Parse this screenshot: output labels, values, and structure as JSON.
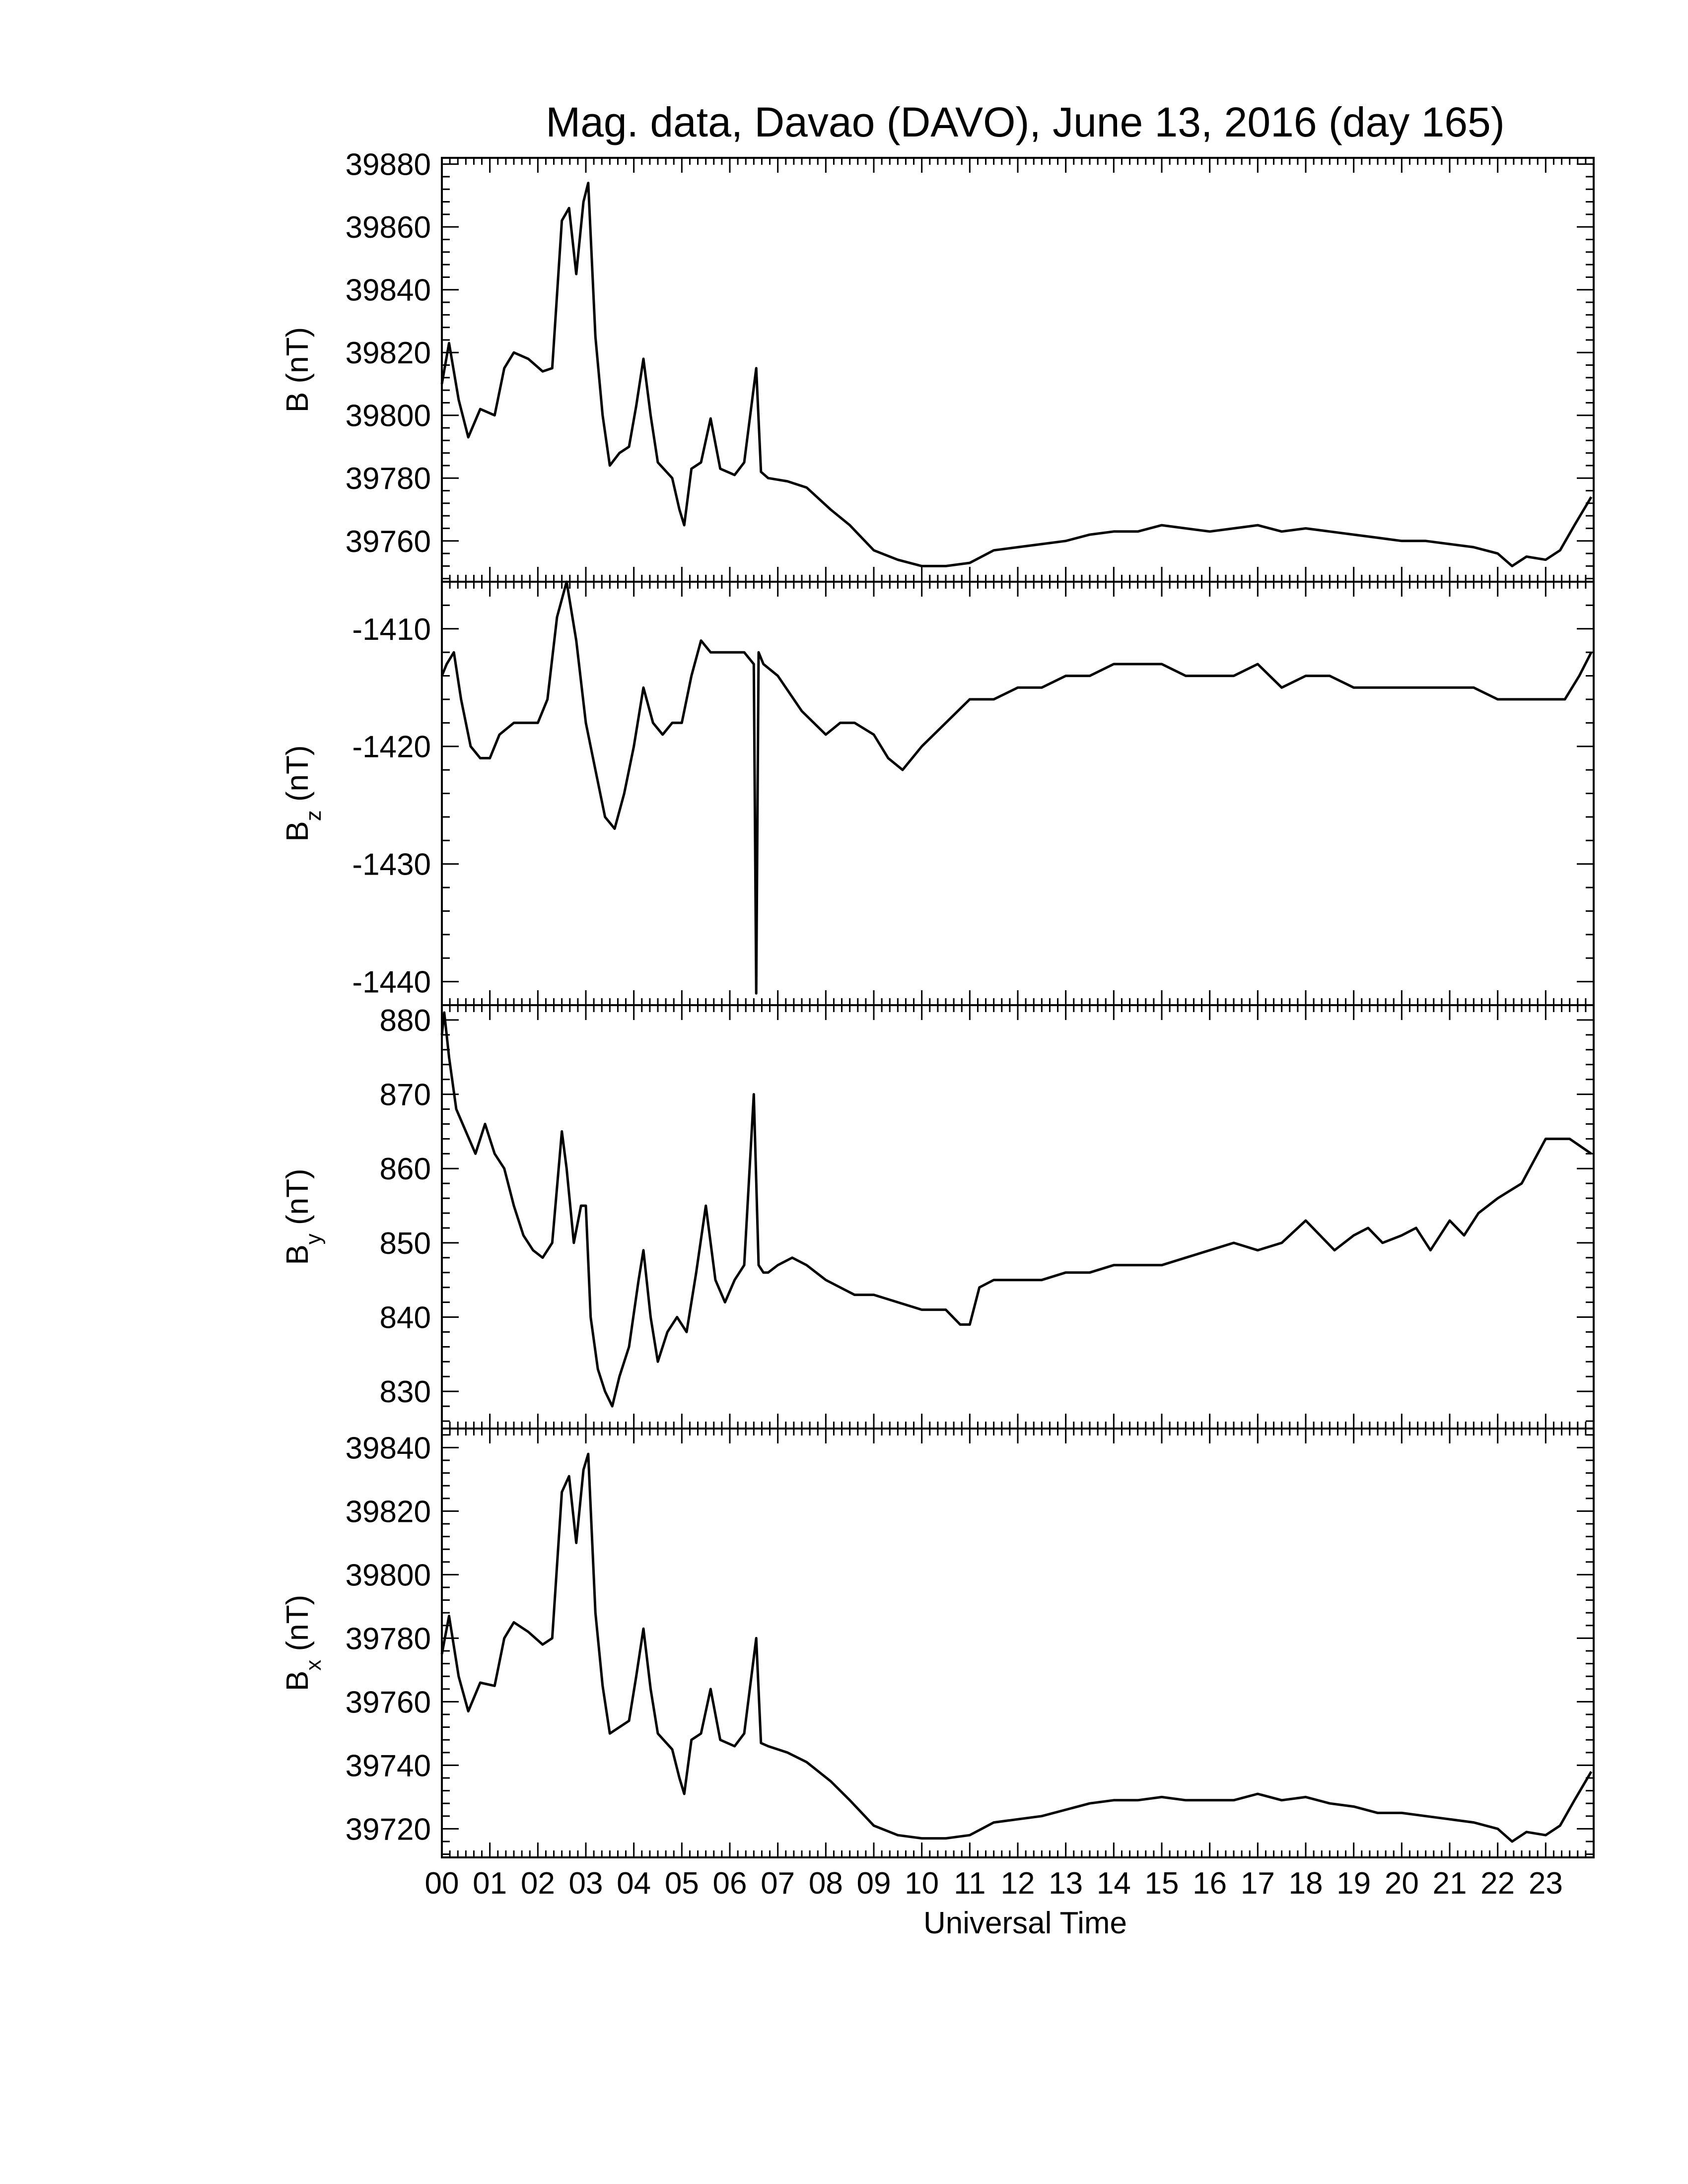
{
  "title": "Mag. data, Davao (DAVO), June 13, 2016 (day 165)",
  "colors": {
    "line": "#000000",
    "background": "#ffffff",
    "axis": "#000000"
  },
  "chart_data": [
    {
      "type": "line",
      "ylabel": {
        "base": "B",
        "sub": "",
        "unit": "(nT)"
      },
      "ylim": [
        39747,
        39882
      ],
      "yticks": [
        39760,
        39780,
        39800,
        39820,
        39840,
        39860,
        39880
      ],
      "ytick_labels": [
        "39760",
        "39780",
        "39800",
        "39820",
        "39840",
        "39860",
        "39880"
      ],
      "xlim": [
        0,
        24
      ],
      "x": [
        0.0,
        0.15,
        0.35,
        0.55,
        0.8,
        1.1,
        1.3,
        1.5,
        1.8,
        2.1,
        2.3,
        2.5,
        2.65,
        2.8,
        2.95,
        3.05,
        3.2,
        3.35,
        3.5,
        3.7,
        3.9,
        4.05,
        4.2,
        4.35,
        4.5,
        4.8,
        4.95,
        5.05,
        5.2,
        5.4,
        5.6,
        5.8,
        6.1,
        6.3,
        6.55,
        6.65,
        6.8,
        7.2,
        7.6,
        8.1,
        8.5,
        9.0,
        9.5,
        10.0,
        10.5,
        11.0,
        11.5,
        12.0,
        12.5,
        13.0,
        13.5,
        14.0,
        14.5,
        15.0,
        15.5,
        16.0,
        16.5,
        17.0,
        17.5,
        18.0,
        18.5,
        19.0,
        19.5,
        20.0,
        20.5,
        21.0,
        21.5,
        22.0,
        22.3,
        22.6,
        23.0,
        23.3,
        23.6,
        23.95
      ],
      "y": [
        39810,
        39823,
        39805,
        39793,
        39802,
        39800,
        39815,
        39820,
        39818,
        39814,
        39815,
        39862,
        39866,
        39845,
        39868,
        39874,
        39825,
        39800,
        39784,
        39788,
        39790,
        39803,
        39818,
        39800,
        39785,
        39780,
        39770,
        39765,
        39783,
        39785,
        39799,
        39783,
        39781,
        39785,
        39815,
        39782,
        39780,
        39779,
        39777,
        39770,
        39765,
        39757,
        39754,
        39752,
        39752,
        39753,
        39757,
        39758,
        39759,
        39760,
        39762,
        39763,
        39763,
        39765,
        39764,
        39763,
        39764,
        39765,
        39763,
        39764,
        39763,
        39762,
        39761,
        39760,
        39760,
        39759,
        39758,
        39756,
        39752,
        39755,
        39754,
        39757,
        39765,
        39774
      ]
    },
    {
      "type": "line",
      "ylabel": {
        "base": "B",
        "sub": "z",
        "unit": "(nT)"
      },
      "ylim": [
        -1442,
        -1406
      ],
      "yticks": [
        -1440,
        -1430,
        -1420,
        -1410
      ],
      "ytick_labels": [
        "-1440",
        "-1430",
        "-1420",
        "-1410"
      ],
      "xlim": [
        0,
        24
      ],
      "x": [
        0.0,
        0.1,
        0.25,
        0.4,
        0.6,
        0.8,
        1.0,
        1.2,
        1.5,
        1.8,
        2.0,
        2.2,
        2.4,
        2.6,
        2.8,
        3.0,
        3.2,
        3.4,
        3.6,
        3.8,
        4.0,
        4.2,
        4.4,
        4.6,
        4.8,
        5.0,
        5.2,
        5.4,
        5.6,
        5.8,
        6.0,
        6.3,
        6.5,
        6.55,
        6.6,
        6.7,
        7.0,
        7.5,
        8.0,
        8.3,
        8.6,
        9.0,
        9.3,
        9.6,
        10.0,
        10.5,
        11.0,
        11.5,
        12.0,
        12.5,
        13.0,
        13.5,
        14.0,
        14.5,
        15.0,
        15.5,
        16.0,
        16.5,
        17.0,
        17.5,
        18.0,
        18.5,
        19.0,
        19.5,
        20.0,
        20.5,
        21.0,
        21.5,
        22.0,
        22.5,
        23.0,
        23.4,
        23.7,
        23.95
      ],
      "y": [
        -1414,
        -1413,
        -1412,
        -1416,
        -1420,
        -1421,
        -1421,
        -1419,
        -1418,
        -1418,
        -1418,
        -1416,
        -1409,
        -1406,
        -1411,
        -1418,
        -1422,
        -1426,
        -1427,
        -1424,
        -1420,
        -1415,
        -1418,
        -1419,
        -1418,
        -1418,
        -1414,
        -1411,
        -1412,
        -1412,
        -1412,
        -1412,
        -1413,
        -1441,
        -1412,
        -1413,
        -1414,
        -1417,
        -1419,
        -1418,
        -1418,
        -1419,
        -1421,
        -1422,
        -1420,
        -1418,
        -1416,
        -1416,
        -1415,
        -1415,
        -1414,
        -1414,
        -1413,
        -1413,
        -1413,
        -1414,
        -1414,
        -1414,
        -1413,
        -1415,
        -1414,
        -1414,
        -1415,
        -1415,
        -1415,
        -1415,
        -1415,
        -1415,
        -1416,
        -1416,
        -1416,
        -1416,
        -1414,
        -1412
      ]
    },
    {
      "type": "line",
      "ylabel": {
        "base": "B",
        "sub": "y",
        "unit": "(nT)"
      },
      "ylim": [
        825,
        882
      ],
      "yticks": [
        830,
        840,
        850,
        860,
        870,
        880
      ],
      "ytick_labels": [
        "830",
        "840",
        "850",
        "860",
        "870",
        "880"
      ],
      "xlim": [
        0,
        24
      ],
      "x": [
        0.0,
        0.05,
        0.15,
        0.3,
        0.5,
        0.7,
        0.9,
        1.1,
        1.3,
        1.5,
        1.7,
        1.9,
        2.1,
        2.3,
        2.5,
        2.6,
        2.75,
        2.9,
        3.0,
        3.1,
        3.25,
        3.4,
        3.55,
        3.7,
        3.9,
        4.1,
        4.2,
        4.35,
        4.5,
        4.7,
        4.9,
        5.1,
        5.3,
        5.5,
        5.7,
        5.9,
        6.1,
        6.3,
        6.5,
        6.6,
        6.7,
        6.8,
        7.0,
        7.3,
        7.6,
        8.0,
        8.3,
        8.6,
        9.0,
        9.5,
        10.0,
        10.5,
        10.8,
        11.0,
        11.2,
        11.5,
        12.0,
        12.5,
        13.0,
        13.5,
        14.0,
        14.5,
        15.0,
        15.5,
        16.0,
        16.5,
        17.0,
        17.5,
        18.0,
        18.3,
        18.6,
        19.0,
        19.3,
        19.6,
        20.0,
        20.3,
        20.6,
        21.0,
        21.3,
        21.6,
        22.0,
        22.5,
        23.0,
        23.5,
        23.95
      ],
      "y": [
        878,
        881,
        875,
        868,
        865,
        862,
        866,
        862,
        860,
        855,
        851,
        849,
        848,
        850,
        865,
        860,
        850,
        855,
        855,
        840,
        833,
        830,
        828,
        832,
        836,
        845,
        849,
        840,
        834,
        838,
        840,
        838,
        846,
        855,
        845,
        842,
        845,
        847,
        870,
        847,
        846,
        846,
        847,
        848,
        847,
        845,
        844,
        843,
        843,
        842,
        841,
        841,
        839,
        839,
        844,
        845,
        845,
        845,
        846,
        846,
        847,
        847,
        847,
        848,
        849,
        850,
        849,
        850,
        853,
        851,
        849,
        851,
        852,
        850,
        851,
        852,
        849,
        853,
        851,
        854,
        856,
        858,
        864,
        864,
        862
      ]
    },
    {
      "type": "line",
      "ylabel": {
        "base": "B",
        "sub": "x",
        "unit": "(nT)"
      },
      "ylim": [
        39711,
        39846
      ],
      "yticks": [
        39720,
        39740,
        39760,
        39780,
        39800,
        39820,
        39840
      ],
      "ytick_labels": [
        "39720",
        "39740",
        "39760",
        "39780",
        "39800",
        "39820",
        "39840"
      ],
      "xlim": [
        0,
        24
      ],
      "x": [
        0.0,
        0.15,
        0.35,
        0.55,
        0.8,
        1.1,
        1.3,
        1.5,
        1.8,
        2.1,
        2.3,
        2.5,
        2.65,
        2.8,
        2.95,
        3.05,
        3.2,
        3.35,
        3.5,
        3.7,
        3.9,
        4.05,
        4.2,
        4.35,
        4.5,
        4.8,
        4.95,
        5.05,
        5.2,
        5.4,
        5.6,
        5.8,
        6.1,
        6.3,
        6.55,
        6.65,
        6.8,
        7.2,
        7.6,
        8.1,
        8.5,
        9.0,
        9.5,
        10.0,
        10.5,
        11.0,
        11.5,
        12.0,
        12.5,
        13.0,
        13.5,
        14.0,
        14.5,
        15.0,
        15.5,
        16.0,
        16.5,
        17.0,
        17.5,
        18.0,
        18.5,
        19.0,
        19.5,
        20.0,
        20.5,
        21.0,
        21.5,
        22.0,
        22.3,
        22.6,
        23.0,
        23.3,
        23.6,
        23.95
      ],
      "y": [
        39775,
        39787,
        39768,
        39757,
        39766,
        39765,
        39780,
        39785,
        39782,
        39778,
        39780,
        39826,
        39831,
        39810,
        39833,
        39838,
        39788,
        39765,
        39750,
        39752,
        39754,
        39768,
        39783,
        39764,
        39750,
        39745,
        39736,
        39731,
        39748,
        39750,
        39764,
        39748,
        39746,
        39750,
        39780,
        39747,
        39746,
        39744,
        39741,
        39735,
        39729,
        39721,
        39718,
        39717,
        39717,
        39718,
        39722,
        39723,
        39724,
        39726,
        39728,
        39729,
        39729,
        39730,
        39729,
        39729,
        39729,
        39731,
        39729,
        39730,
        39728,
        39727,
        39725,
        39725,
        39724,
        39723,
        39722,
        39720,
        39716,
        39719,
        39718,
        39721,
        39729,
        39738
      ]
    }
  ],
  "x_axis": {
    "label": "Universal Time",
    "tick_labels": [
      "00",
      "01",
      "02",
      "03",
      "04",
      "05",
      "06",
      "07",
      "08",
      "09",
      "10",
      "11",
      "12",
      "13",
      "14",
      "15",
      "16",
      "17",
      "18",
      "19",
      "20",
      "21",
      "22",
      "23"
    ]
  }
}
